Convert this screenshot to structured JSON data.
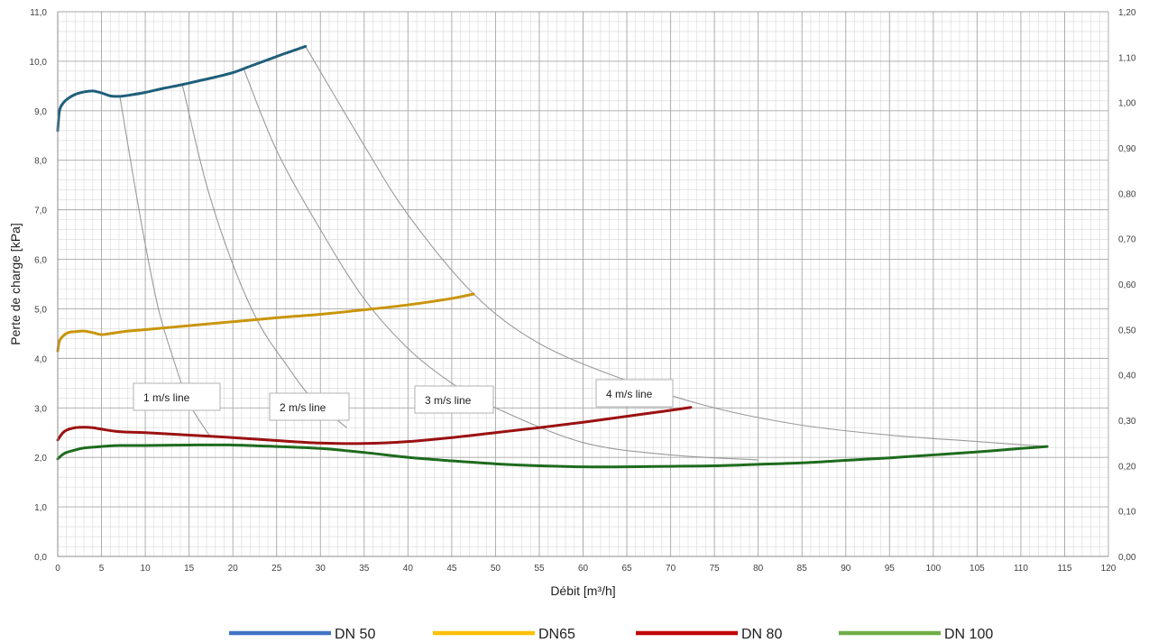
{
  "chart_data": {
    "type": "line",
    "xlabel": "Débit [m³/h]",
    "ylabel": "Perte de charge  [kPa]",
    "xlim": [
      0,
      120
    ],
    "ylim": [
      0,
      11
    ],
    "y2lim": [
      0,
      1.2
    ],
    "grid": true,
    "legend_position": "bottom",
    "x_ticks": [
      "0",
      "5",
      "10",
      "15",
      "20",
      "25",
      "30",
      "35",
      "40",
      "45",
      "50",
      "55",
      "60",
      "65",
      "70",
      "75",
      "80",
      "85",
      "90",
      "95",
      "100",
      "105",
      "110",
      "115",
      "120"
    ],
    "y_ticks": [
      "0,0",
      "1,0",
      "2,0",
      "3,0",
      "4,0",
      "5,0",
      "6,0",
      "7,0",
      "8,0",
      "9,0",
      "10,0",
      "11,0"
    ],
    "y2_ticks": [
      "0,00",
      "0,10",
      "0,20",
      "0,30",
      "0,40",
      "0,50",
      "0,60",
      "0,70",
      "0,80",
      "0,90",
      "1,00",
      "1,10",
      "1,20"
    ],
    "series": [
      {
        "name": "DN 50",
        "color": "#4472c4",
        "line_color": "#1f5f7a",
        "x": [
          0,
          0.2,
          0.6,
          1.2,
          2,
          3,
          4,
          5,
          6,
          7,
          8,
          10,
          12,
          14,
          16,
          18,
          20,
          22,
          24,
          26,
          28.3
        ],
        "y": [
          8.6,
          9.0,
          9.15,
          9.25,
          9.33,
          9.38,
          9.4,
          9.36,
          9.3,
          9.29,
          9.31,
          9.37,
          9.45,
          9.52,
          9.6,
          9.68,
          9.77,
          9.9,
          10.03,
          10.16,
          10.3
        ]
      },
      {
        "name": "DN65",
        "color": "#ffc000",
        "line_color": "#c9950c",
        "x": [
          0,
          0.2,
          0.6,
          1.2,
          2,
          3,
          4,
          5,
          6,
          8,
          10,
          15,
          20,
          25,
          30,
          35,
          40,
          45,
          47.5
        ],
        "y": [
          4.15,
          4.35,
          4.45,
          4.52,
          4.54,
          4.55,
          4.52,
          4.48,
          4.5,
          4.55,
          4.58,
          4.66,
          4.74,
          4.82,
          4.89,
          4.98,
          5.08,
          5.21,
          5.3
        ]
      },
      {
        "name": "DN 80",
        "color": "#c00000",
        "line_color": "#9b1111",
        "x": [
          0,
          0.5,
          1,
          2,
          3,
          4,
          5,
          7,
          10,
          15,
          20,
          25,
          30,
          35,
          40,
          45,
          50,
          55,
          60,
          65,
          70,
          72.3
        ],
        "y": [
          2.35,
          2.48,
          2.55,
          2.6,
          2.61,
          2.6,
          2.57,
          2.52,
          2.5,
          2.45,
          2.4,
          2.34,
          2.29,
          2.28,
          2.32,
          2.4,
          2.5,
          2.6,
          2.71,
          2.83,
          2.95,
          3.01
        ]
      },
      {
        "name": "DN 100",
        "color": "#70ad47",
        "line_color": "#1e6b1e",
        "x": [
          0,
          0.5,
          1,
          2,
          3,
          5,
          7,
          10,
          15,
          20,
          25,
          30,
          35,
          40,
          45,
          50,
          55,
          60,
          65,
          70,
          75,
          80,
          85,
          90,
          95,
          100,
          105,
          110,
          113
        ],
        "y": [
          1.97,
          2.05,
          2.1,
          2.15,
          2.19,
          2.22,
          2.24,
          2.24,
          2.25,
          2.25,
          2.22,
          2.18,
          2.1,
          2.0,
          1.93,
          1.87,
          1.83,
          1.81,
          1.81,
          1.82,
          1.83,
          1.86,
          1.89,
          1.94,
          1.99,
          2.05,
          2.11,
          2.18,
          2.22
        ]
      }
    ],
    "velocity_lines": [
      {
        "label": "1 m/s line",
        "x": [
          7.1,
          8.5,
          10,
          11.5,
          13,
          15,
          17.5
        ],
        "y": [
          9.29,
          7.8,
          6.3,
          5.0,
          4.1,
          3.1,
          2.4
        ]
      },
      {
        "label": "2 m/s line",
        "x": [
          14.2,
          17,
          20,
          23,
          26,
          29,
          33
        ],
        "y": [
          9.55,
          7.5,
          5.9,
          4.7,
          3.9,
          3.2,
          2.6
        ]
      },
      {
        "label": "3 m/s line",
        "x": [
          21.3,
          25,
          30,
          35,
          40,
          45,
          50,
          60,
          70,
          80
        ],
        "y": [
          9.82,
          8.2,
          6.6,
          5.2,
          4.2,
          3.5,
          3.0,
          2.3,
          2.05,
          1.95
        ]
      },
      {
        "label": "4 m/s line",
        "x": [
          28.3,
          35,
          40,
          47.5,
          55,
          65,
          75,
          85,
          95,
          105,
          113
        ],
        "y": [
          10.3,
          8.3,
          6.9,
          5.3,
          4.3,
          3.55,
          3.0,
          2.65,
          2.45,
          2.32,
          2.22
        ]
      }
    ]
  }
}
